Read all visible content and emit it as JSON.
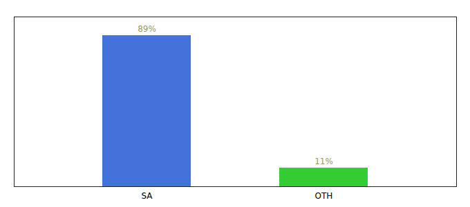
{
  "chart_data": {
    "type": "bar",
    "categories": [
      "SA",
      "OTH"
    ],
    "values": [
      89,
      11
    ],
    "value_labels": [
      "89%",
      "11%"
    ],
    "colors": [
      "#4472db",
      "#33cc33"
    ],
    "ylim": [
      0,
      100
    ],
    "data_labels": true,
    "tick_labels": "x"
  }
}
